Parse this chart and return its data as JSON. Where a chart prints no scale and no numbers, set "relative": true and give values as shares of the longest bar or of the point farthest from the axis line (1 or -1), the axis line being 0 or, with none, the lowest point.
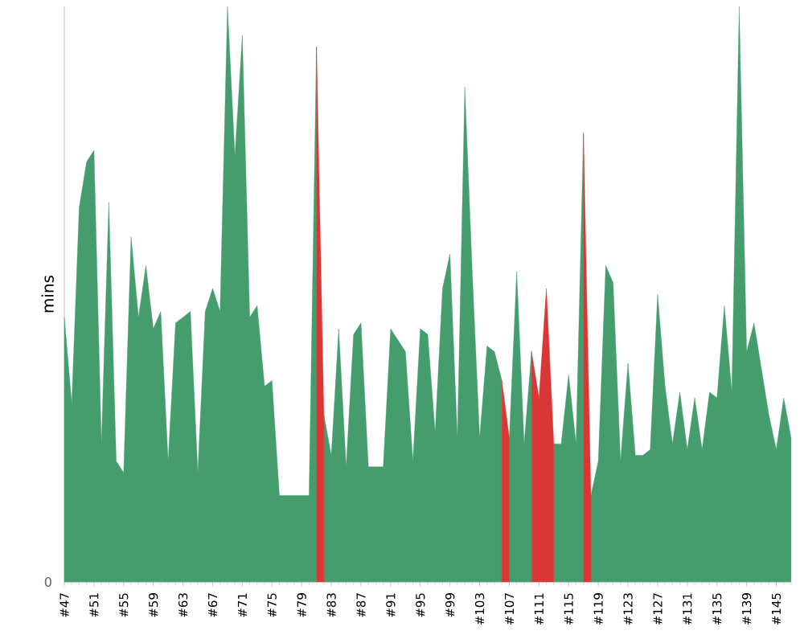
{
  "chart_data": {
    "type": "area",
    "ylabel": "mins",
    "relative": true,
    "annotations": [
      "0"
    ],
    "categories": [
      "#47",
      null,
      null,
      null,
      "#51",
      null,
      null,
      null,
      "#55",
      null,
      null,
      null,
      "#59",
      null,
      null,
      null,
      "#63",
      null,
      null,
      null,
      "#67",
      null,
      null,
      null,
      "#71",
      null,
      null,
      null,
      "#75",
      null,
      null,
      null,
      "#79",
      null,
      null,
      null,
      "#83",
      null,
      null,
      null,
      "#87",
      null,
      null,
      null,
      "#91",
      null,
      null,
      null,
      "#95",
      null,
      null,
      null,
      "#99",
      null,
      null,
      null,
      "#103",
      null,
      null,
      null,
      "#107",
      null,
      null,
      null,
      "#111",
      null,
      null,
      null,
      "#115",
      null,
      null,
      null,
      "#119",
      null,
      null,
      null,
      "#123",
      null,
      null,
      null,
      "#127",
      null,
      null,
      null,
      "#131",
      null,
      null,
      null,
      "#135",
      null,
      null,
      null,
      "#139",
      null,
      null,
      null,
      "#145",
      null,
      null
    ],
    "series": [
      {
        "color": "#459d6e",
        "values": [
          0.46,
          0.31,
          0.65,
          0.73,
          0.75,
          0.24,
          0.66,
          0.21,
          0.19,
          0.6,
          0.46,
          0.55,
          0.44,
          0.47,
          0.21,
          0.45,
          0.46,
          0.47,
          0.19,
          0.47,
          0.51,
          0.47,
          1.0,
          0.74,
          0.95,
          0.46,
          0.48,
          0.34,
          0.35,
          0.15,
          0.15,
          0.15,
          0.15,
          0.15,
          0.93,
          0.29,
          0.22,
          0.44,
          0.2,
          0.43,
          0.45,
          0.2,
          0.2,
          0.2,
          0.44,
          0.42,
          0.4,
          0.21,
          0.44,
          0.43,
          0.26,
          0.51,
          0.57,
          0.25,
          0.86,
          0.54,
          0.25,
          0.41,
          0.4,
          0.35,
          0.25,
          0.54,
          0.24,
          0.4,
          null,
          null,
          0.24,
          0.24,
          0.36,
          0.24,
          0.78,
          0.15,
          0.21,
          0.55,
          0.52,
          0.21,
          0.38,
          0.22,
          0.22,
          0.23,
          0.5,
          0.34,
          0.24,
          0.33,
          0.23,
          0.32,
          0.23,
          0.33,
          0.32,
          0.48,
          0.33,
          1.0,
          0.4,
          0.45,
          0.37,
          0.29,
          0.23,
          0.32,
          0.25
        ]
      },
      {
        "color": "#d93636",
        "values": [
          null,
          null,
          null,
          null,
          null,
          null,
          null,
          null,
          null,
          null,
          null,
          null,
          null,
          null,
          null,
          null,
          null,
          null,
          null,
          null,
          null,
          null,
          null,
          null,
          null,
          null,
          null,
          null,
          null,
          null,
          null,
          null,
          null,
          null,
          0.93,
          0.29,
          null,
          null,
          null,
          null,
          null,
          null,
          null,
          null,
          null,
          null,
          null,
          null,
          null,
          null,
          null,
          null,
          null,
          null,
          null,
          null,
          null,
          null,
          null,
          0.35,
          0.25,
          null,
          null,
          0.4,
          0.32,
          0.51,
          0.24,
          null,
          null,
          null,
          0.78,
          0.15,
          null,
          null,
          null,
          null,
          null,
          null,
          null,
          null,
          null,
          null,
          null,
          null,
          null,
          null,
          null,
          null,
          null,
          null,
          null,
          null,
          null,
          null,
          null,
          null,
          null,
          null,
          null
        ]
      }
    ]
  }
}
